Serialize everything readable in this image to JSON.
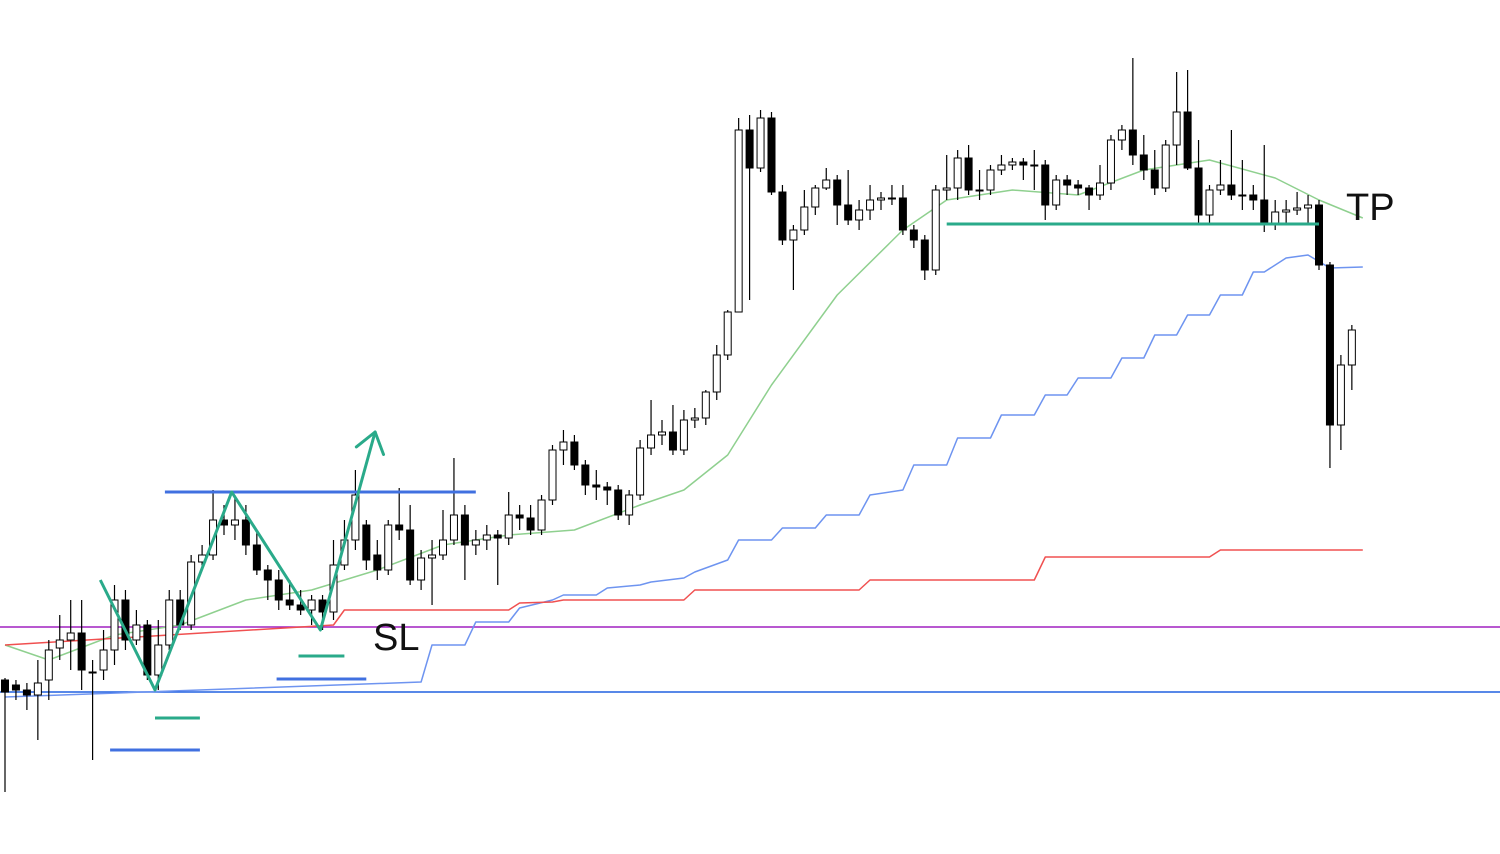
{
  "chart_data": {
    "type": "candlestick",
    "ylim": [
      146,
      1000
    ],
    "open": [
      320,
      315,
      310,
      305,
      320,
      352,
      360,
      367,
      328,
      330,
      350,
      400,
      360,
      375,
      325,
      355,
      400,
      375,
      438,
      445,
      480,
      475,
      480,
      455,
      430,
      420,
      400,
      395,
      390,
      400,
      388,
      435,
      460,
      475,
      445,
      430,
      475,
      470,
      420,
      442,
      445,
      460,
      485,
      455,
      460,
      465,
      462,
      485,
      482,
      470,
      500,
      550,
      558,
      535,
      515,
      513,
      510,
      485,
      505,
      552,
      565,
      568,
      550,
      580,
      582,
      608,
      645,
      688,
      870,
      832,
      882,
      808,
      760,
      770,
      793,
      812,
      820,
      795,
      780,
      790,
      800,
      802,
      802,
      770,
      760,
      730,
      810,
      812,
      842,
      810,
      810,
      830,
      835,
      838,
      835,
      835,
      795,
      820,
      815,
      812,
      805,
      817,
      860,
      870,
      845,
      830,
      812,
      855,
      888,
      832,
      785,
      810,
      815,
      805,
      805,
      800,
      775,
      788,
      790,
      792,
      795,
      735,
      575,
      635
    ],
    "high": [
      322,
      320,
      317,
      340,
      360,
      385,
      400,
      400,
      340,
      370,
      415,
      410,
      390,
      380,
      380,
      410,
      410,
      445,
      455,
      510,
      495,
      505,
      495,
      470,
      435,
      430,
      420,
      410,
      405,
      405,
      460,
      480,
      530,
      480,
      460,
      480,
      512,
      495,
      450,
      460,
      490,
      542,
      495,
      470,
      475,
      470,
      508,
      495,
      495,
      505,
      555,
      570,
      565,
      540,
      530,
      518,
      515,
      510,
      560,
      600,
      580,
      595,
      590,
      592,
      610,
      655,
      690,
      882,
      885,
      890,
      888,
      815,
      775,
      810,
      815,
      832,
      825,
      830,
      800,
      815,
      808,
      815,
      815,
      775,
      765,
      815,
      845,
      850,
      855,
      830,
      835,
      845,
      842,
      842,
      850,
      840,
      825,
      825,
      820,
      815,
      835,
      865,
      875,
      942,
      865,
      850,
      860,
      928,
      930,
      860,
      815,
      840,
      870,
      840,
      815,
      855,
      800,
      800,
      808,
      805,
      800,
      738,
      645,
      675
    ],
    "low": [
      208,
      300,
      290,
      260,
      300,
      340,
      330,
      310,
      240,
      320,
      335,
      350,
      355,
      320,
      310,
      350,
      370,
      370,
      430,
      440,
      465,
      460,
      445,
      425,
      400,
      390,
      390,
      385,
      375,
      370,
      380,
      430,
      450,
      430,
      420,
      425,
      460,
      415,
      410,
      395,
      440,
      455,
      420,
      445,
      450,
      415,
      455,
      470,
      465,
      465,
      495,
      535,
      530,
      505,
      500,
      495,
      480,
      475,
      500,
      545,
      555,
      545,
      545,
      572,
      575,
      600,
      640,
      690,
      700,
      828,
      805,
      755,
      710,
      765,
      785,
      810,
      775,
      775,
      770,
      780,
      790,
      795,
      765,
      752,
      720,
      725,
      800,
      800,
      805,
      800,
      805,
      825,
      830,
      820,
      810,
      780,
      790,
      805,
      805,
      790,
      800,
      810,
      850,
      835,
      820,
      805,
      808,
      835,
      830,
      775,
      775,
      805,
      800,
      790,
      790,
      768,
      770,
      775,
      785,
      775,
      730,
      532,
      550,
      610
    ],
    "close": [
      308,
      310,
      305,
      317,
      350,
      360,
      367,
      330,
      328,
      350,
      400,
      360,
      375,
      325,
      355,
      400,
      375,
      438,
      445,
      480,
      475,
      480,
      455,
      430,
      420,
      400,
      395,
      390,
      400,
      388,
      435,
      460,
      505,
      440,
      430,
      475,
      470,
      420,
      442,
      445,
      460,
      485,
      455,
      460,
      465,
      462,
      485,
      482,
      470,
      500,
      550,
      558,
      535,
      515,
      513,
      510,
      485,
      505,
      552,
      565,
      568,
      550,
      580,
      582,
      608,
      645,
      688,
      870,
      832,
      882,
      808,
      760,
      770,
      793,
      812,
      820,
      795,
      780,
      790,
      800,
      802,
      802,
      770,
      760,
      730,
      810,
      812,
      842,
      810,
      810,
      830,
      835,
      838,
      835,
      835,
      795,
      820,
      815,
      812,
      805,
      817,
      860,
      870,
      845,
      830,
      812,
      855,
      888,
      832,
      785,
      810,
      815,
      805,
      805,
      800,
      775,
      788,
      790,
      792,
      795,
      735,
      575,
      635,
      670
    ],
    "bull_color": "#ffffff",
    "bear_color": "#000000",
    "hlines": [
      {
        "color": "#a020c0",
        "value": 373
      },
      {
        "color": "#2060e0",
        "value": 308
      }
    ],
    "overlays": [
      {
        "color": "#8fd08f",
        "width": 1.5,
        "x": [
          0,
          4,
          10,
          16,
          22,
          28,
          34,
          40,
          46,
          52,
          58,
          62,
          66,
          70,
          76,
          82,
          86,
          92,
          98,
          104,
          110,
          116,
          120,
          124
        ],
        "values": [
          355,
          340,
          365,
          375,
          400,
          410,
          430,
          455,
          465,
          470,
          495,
          510,
          545,
          615,
          705,
          770,
          800,
          810,
          805,
          830,
          840,
          822,
          800,
          782
        ]
      },
      {
        "color": "#6e94f0",
        "width": 1.5,
        "x": [
          0,
          38,
          39,
          42,
          43,
          46,
          47,
          50,
          51,
          54,
          55,
          58,
          59,
          62,
          63,
          66,
          67,
          70,
          71,
          74,
          75,
          78,
          79,
          82,
          83,
          86,
          87,
          90,
          91,
          94,
          95,
          97,
          98,
          101,
          102,
          104,
          105,
          107,
          108,
          110,
          111,
          113,
          114,
          115,
          117,
          119,
          121,
          124
        ],
        "values": [
          303,
          318,
          355,
          355,
          378,
          378,
          392,
          400,
          405,
          405,
          412,
          415,
          418,
          422,
          428,
          440,
          460,
          460,
          472,
          472,
          485,
          485,
          505,
          510,
          535,
          535,
          562,
          562,
          585,
          585,
          605,
          605,
          622,
          622,
          642,
          642,
          665,
          665,
          685,
          685,
          705,
          705,
          728,
          728,
          742,
          745,
          732,
          733
        ]
      },
      {
        "color": "#f05050",
        "width": 1.5,
        "x": [
          0,
          30,
          31,
          46,
          47,
          50,
          51,
          62,
          63,
          78,
          79,
          94,
          95,
          110,
          111,
          124
        ],
        "values": [
          355,
          375,
          390,
          390,
          397,
          398,
          400,
          400,
          410,
          410,
          420,
          420,
          443,
          443,
          450,
          450
        ]
      },
      {
        "color": "#4070e0",
        "width": 3,
        "x": [
          14.6,
          43
        ],
        "values": [
          508,
          508
        ]
      },
      {
        "color": "#2aaa8a",
        "width": 3,
        "x": [
          86,
          120
        ],
        "values": [
          776,
          776
        ]
      },
      {
        "color": "#2aaa8a",
        "width": 3,
        "x": [
          8.7,
          13.7,
          20.7,
          28.8,
          33.8
        ],
        "values": [
          420,
          310,
          508,
          370,
          568
        ],
        "arrow": true
      },
      {
        "color": "#2aaa8a",
        "width": 3,
        "x": [
          13.7,
          17.8
        ],
        "values": [
          282,
          282
        ]
      },
      {
        "color": "#2aaa8a",
        "width": 3,
        "x": [
          26.8,
          31
        ],
        "values": [
          344,
          344
        ]
      },
      {
        "color": "#4070e0",
        "width": 3,
        "x": [
          9.6,
          17.8
        ],
        "values": [
          250,
          250
        ]
      },
      {
        "color": "#4070e0",
        "width": 3,
        "x": [
          24.8,
          33
        ],
        "values": [
          321,
          321
        ]
      }
    ],
    "tp_label": "TP",
    "sl_label": "SL"
  }
}
